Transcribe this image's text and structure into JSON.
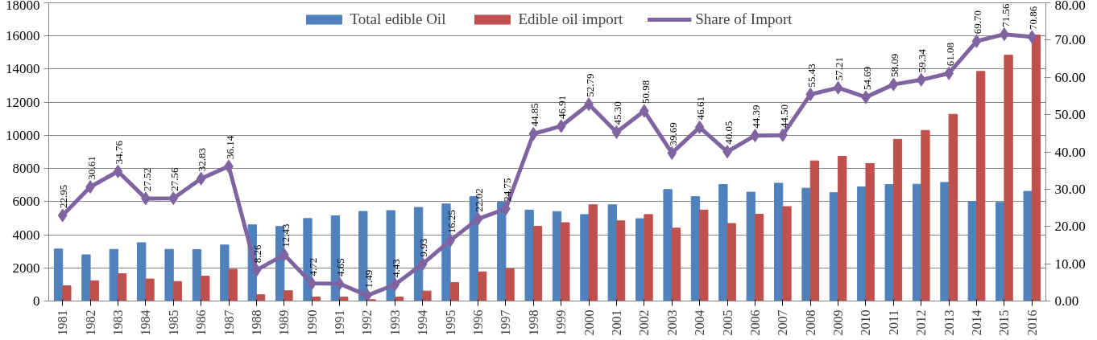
{
  "chart_data": {
    "type": "bar",
    "categories": [
      "1981",
      "1982",
      "1983",
      "1984",
      "1985",
      "1986",
      "1987",
      "1988",
      "1989",
      "1990",
      "1991",
      "1992",
      "1993",
      "1994",
      "1995",
      "1996",
      "1997",
      "1998",
      "1999",
      "2000",
      "2001",
      "2002",
      "2003",
      "2004",
      "2005",
      "2006",
      "2007",
      "2008",
      "2009",
      "2010",
      "2011",
      "2012",
      "2013",
      "2014",
      "2015",
      "2016"
    ],
    "series": [
      {
        "name": "Total edible Oil",
        "type": "bar",
        "color": "#4f81bd",
        "values": [
          3140,
          2790,
          3120,
          3520,
          3120,
          3100,
          3380,
          4600,
          4500,
          4980,
          5140,
          5410,
          5460,
          5650,
          5860,
          6300,
          5970,
          5490,
          5400,
          5220,
          5810,
          4970,
          6730,
          6300,
          7030,
          6570,
          7110,
          6810,
          6540,
          6890,
          7030,
          7050,
          7160,
          6000,
          5950,
          6620
        ]
      },
      {
        "name": "Edible oil import",
        "type": "bar",
        "color": "#c0504d",
        "values": [
          920,
          1220,
          1650,
          1330,
          1180,
          1500,
          1920,
          380,
          620,
          240,
          240,
          80,
          240,
          600,
          1110,
          1760,
          1950,
          4510,
          4730,
          5810,
          4840,
          5220,
          4400,
          5490,
          4680,
          5240,
          5700,
          8460,
          8730,
          8300,
          9760,
          10300,
          11270,
          13860,
          14840,
          16050
        ]
      },
      {
        "name": "Share of Import",
        "type": "line",
        "axis": "y2",
        "color": "#8064a2",
        "marker": "diamond",
        "values": [
          22.95,
          30.61,
          34.76,
          27.52,
          27.56,
          32.83,
          36.14,
          8.26,
          12.43,
          4.72,
          4.65,
          1.49,
          4.43,
          9.93,
          16.25,
          22.02,
          24.75,
          44.85,
          46.91,
          52.79,
          45.3,
          50.98,
          39.69,
          46.61,
          40.05,
          44.39,
          44.5,
          55.43,
          57.21,
          54.69,
          58.09,
          59.34,
          61.08,
          69.7,
          71.56,
          70.86
        ],
        "value_labels": [
          "22.95",
          "30.61",
          "34.76",
          "27.52",
          "27.56",
          "32.83",
          "36.14",
          "8.26",
          "12.43",
          "4.72",
          "4.65",
          "1.49",
          "4.43",
          "9.93",
          "16.25",
          "22.02",
          "24.75",
          "44.85",
          "46.91",
          "52.79",
          "45.30",
          "50.98",
          "39.69",
          "46.61",
          "40.05",
          "44.39",
          "44.50",
          "55.43",
          "57.21",
          "54.69",
          "58.09",
          "59.34",
          "61.08",
          "69.70",
          "71.56",
          "70.86"
        ]
      }
    ],
    "ylim": [
      0,
      18000
    ],
    "yticks": [
      0,
      2000,
      4000,
      6000,
      8000,
      10000,
      12000,
      14000,
      16000,
      18000
    ],
    "y2lim": [
      0,
      80
    ],
    "y2ticks": [
      {
        "value": 0,
        "label": "0.00"
      },
      {
        "value": 10,
        "label": "10.00"
      },
      {
        "value": 20,
        "label": "20.00"
      },
      {
        "value": 30,
        "label": "30.00"
      },
      {
        "value": 40,
        "label": "40.00"
      },
      {
        "value": 50,
        "label": "50.00"
      },
      {
        "value": 60,
        "label": "60.00"
      },
      {
        "value": 70,
        "label": "70.00"
      },
      {
        "value": 80,
        "label": "80.00"
      }
    ],
    "grid": "y",
    "legend": "top"
  }
}
